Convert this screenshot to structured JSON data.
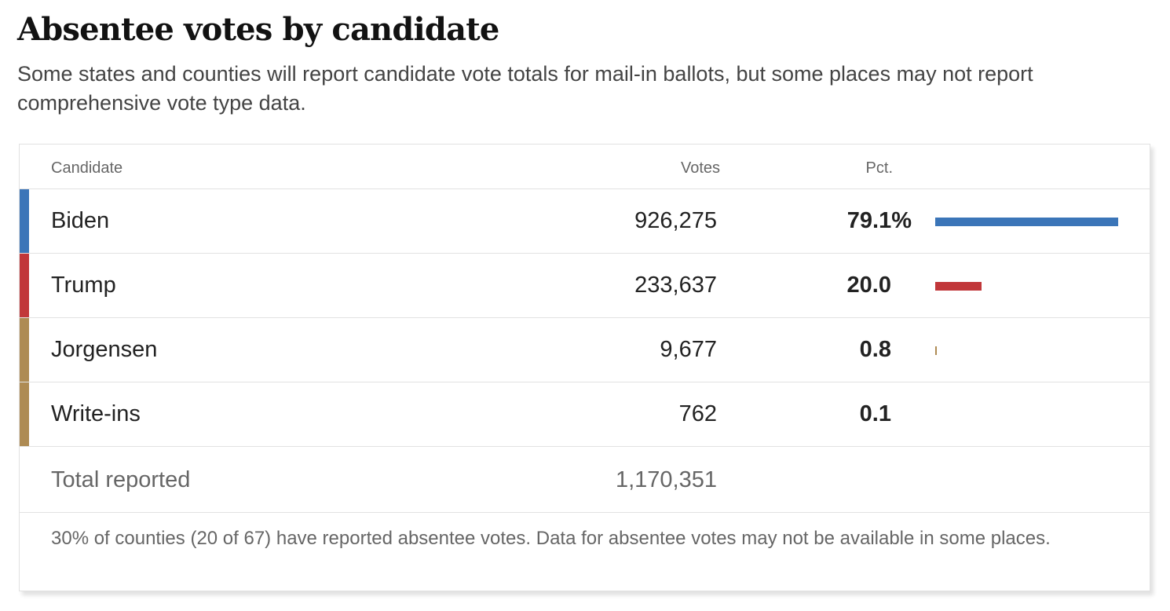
{
  "title": "Absentee votes by candidate",
  "subtitle": "Some states and counties will report candidate vote totals for mail-in ballots, but some places may not report comprehensive vote type data.",
  "table": {
    "headers": {
      "candidate": "Candidate",
      "votes": "Votes",
      "pct": "Pct."
    },
    "rows": [
      {
        "candidate": "Biden",
        "votes": "926,275",
        "pct": "79.1%",
        "share": 79.1,
        "color": "#3b75b8"
      },
      {
        "candidate": "Trump",
        "votes": "233,637",
        "pct": "20.0",
        "share": 20.0,
        "color": "#c1373a"
      },
      {
        "candidate": "Jorgensen",
        "votes": "9,677",
        "pct": "0.8",
        "share": 0.8,
        "color": "#ae8b53"
      },
      {
        "candidate": "Write-ins",
        "votes": "762",
        "pct": "0.1",
        "share": 0.1,
        "color": "#ae8b53"
      }
    ],
    "total": {
      "label": "Total reported",
      "votes": "1,170,351"
    }
  },
  "footnote": "30% of counties (20 of 67) have reported absentee votes. Data for absentee votes may not be available in some places."
}
